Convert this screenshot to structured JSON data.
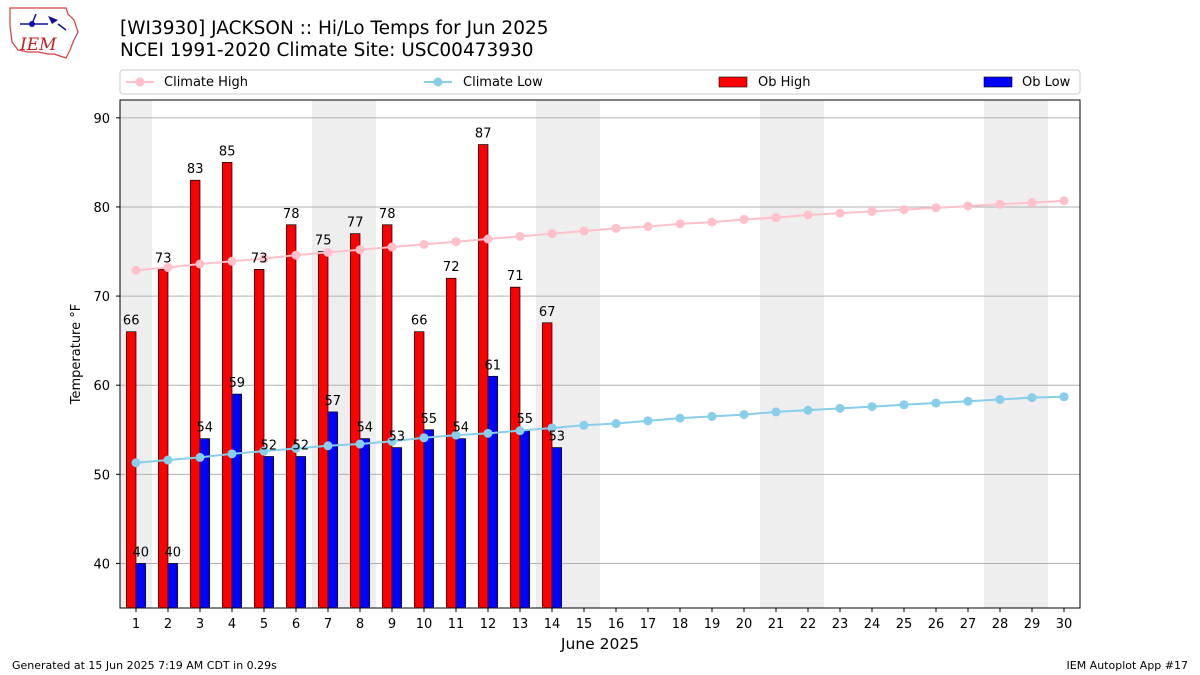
{
  "header": {
    "logo_text": "IEM",
    "title_line1": "[WI3930] JACKSON :: Hi/Lo Temps for Jun 2025",
    "title_line2": "NCEI 1991-2020 Climate Site: USC00473930"
  },
  "footer": {
    "generated": "Generated at 15 Jun 2025 7:19 AM CDT in 0.29s",
    "app": "IEM Autoplot App #17"
  },
  "colors": {
    "ob_high": "#ff0000",
    "ob_low": "#0000ff",
    "climate_high": "#ffc0cb",
    "climate_low": "#87ceeb",
    "weekend_shade": "#eeeeee",
    "grid": "#b0b0b0"
  },
  "chart_data": {
    "type": "bar",
    "xlabel": "June 2025",
    "ylabel": "Temperature °F",
    "ylim": [
      35,
      92
    ],
    "xlim": [
      0.5,
      30.5
    ],
    "yticks": [
      40,
      50,
      60,
      70,
      80,
      90
    ],
    "grid": "horizontal",
    "legend_position": "top",
    "legend": [
      "Climate High",
      "Climate Low",
      "Ob High",
      "Ob Low"
    ],
    "weekend_days": [
      1,
      7,
      8,
      14,
      15,
      21,
      22,
      28,
      29
    ],
    "days": [
      1,
      2,
      3,
      4,
      5,
      6,
      7,
      8,
      9,
      10,
      11,
      12,
      13,
      14,
      15,
      16,
      17,
      18,
      19,
      20,
      21,
      22,
      23,
      24,
      25,
      26,
      27,
      28,
      29,
      30
    ],
    "ob_high": [
      66,
      73,
      83,
      85,
      73,
      78,
      75,
      77,
      78,
      66,
      72,
      87,
      71,
      67
    ],
    "ob_low": [
      40,
      40,
      54,
      59,
      52,
      52,
      57,
      54,
      53,
      55,
      54,
      61,
      55,
      53
    ],
    "climate_high": [
      72.9,
      73.2,
      73.6,
      73.9,
      74.2,
      74.6,
      74.9,
      75.2,
      75.5,
      75.8,
      76.1,
      76.4,
      76.7,
      77.0,
      77.3,
      77.6,
      77.8,
      78.1,
      78.3,
      78.6,
      78.8,
      79.1,
      79.3,
      79.5,
      79.7,
      79.9,
      80.1,
      80.3,
      80.5,
      80.7
    ],
    "climate_low": [
      51.3,
      51.6,
      51.9,
      52.3,
      52.6,
      52.9,
      53.2,
      53.4,
      53.7,
      54.1,
      54.4,
      54.6,
      54.9,
      55.2,
      55.5,
      55.7,
      56.0,
      56.3,
      56.5,
      56.7,
      57.0,
      57.2,
      57.4,
      57.6,
      57.8,
      58.0,
      58.2,
      58.4,
      58.6,
      58.7
    ]
  }
}
